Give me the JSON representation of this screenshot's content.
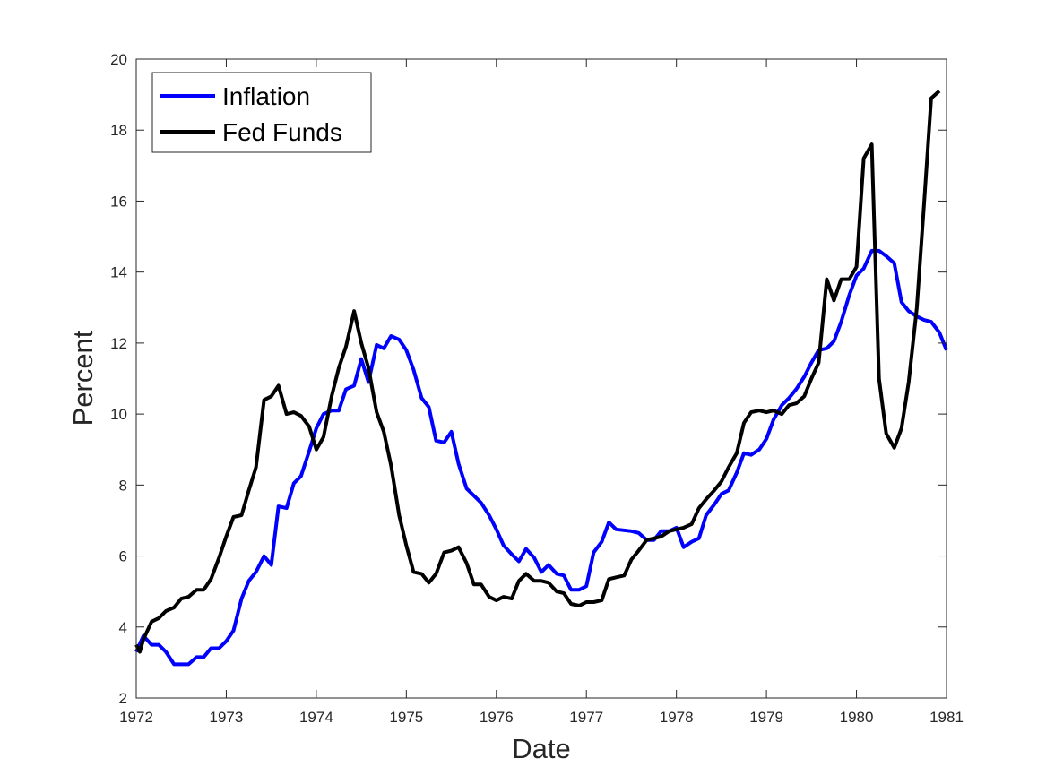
{
  "chart_data": {
    "type": "line",
    "xlabel": "Date",
    "ylabel": "Percent",
    "xlim": [
      1972,
      1981
    ],
    "ylim": [
      2,
      20
    ],
    "xticks": [
      1972,
      1973,
      1974,
      1975,
      1976,
      1977,
      1978,
      1979,
      1980,
      1981
    ],
    "yticks": [
      2,
      4,
      6,
      8,
      10,
      12,
      14,
      16,
      18,
      20
    ],
    "xtick_labels": [
      "1972",
      "1973",
      "1974",
      "1975",
      "1976",
      "1977",
      "1978",
      "1979",
      "1980",
      "1981"
    ],
    "ytick_labels": [
      "2",
      "4",
      "6",
      "8",
      "10",
      "12",
      "14",
      "16",
      "18",
      "20"
    ],
    "grid": false,
    "legend_position": "top-left",
    "series": [
      {
        "name": "Inflation",
        "color": "#0000ff",
        "points": [
          [
            1972.0,
            3.3
          ],
          [
            1972.08,
            3.75
          ],
          [
            1972.17,
            3.5
          ],
          [
            1972.25,
            3.5
          ],
          [
            1972.33,
            3.3
          ],
          [
            1972.42,
            2.95
          ],
          [
            1972.5,
            2.95
          ],
          [
            1972.58,
            2.95
          ],
          [
            1972.67,
            3.15
          ],
          [
            1972.75,
            3.15
          ],
          [
            1972.83,
            3.4
          ],
          [
            1972.92,
            3.4
          ],
          [
            1973.0,
            3.6
          ],
          [
            1973.08,
            3.9
          ],
          [
            1973.17,
            4.8
          ],
          [
            1973.25,
            5.3
          ],
          [
            1973.33,
            5.55
          ],
          [
            1973.42,
            6.0
          ],
          [
            1973.5,
            5.75
          ],
          [
            1973.58,
            7.4
          ],
          [
            1973.67,
            7.35
          ],
          [
            1973.75,
            8.05
          ],
          [
            1973.83,
            8.25
          ],
          [
            1973.92,
            8.95
          ],
          [
            1974.0,
            9.6
          ],
          [
            1974.08,
            10.0
          ],
          [
            1974.17,
            10.1
          ],
          [
            1974.25,
            10.1
          ],
          [
            1974.33,
            10.7
          ],
          [
            1974.42,
            10.8
          ],
          [
            1974.5,
            11.55
          ],
          [
            1974.58,
            10.9
          ],
          [
            1974.67,
            11.95
          ],
          [
            1974.75,
            11.85
          ],
          [
            1974.83,
            12.2
          ],
          [
            1974.92,
            12.1
          ],
          [
            1975.0,
            11.8
          ],
          [
            1975.08,
            11.25
          ],
          [
            1975.17,
            10.45
          ],
          [
            1975.25,
            10.2
          ],
          [
            1975.33,
            9.25
          ],
          [
            1975.42,
            9.2
          ],
          [
            1975.5,
            9.5
          ],
          [
            1975.58,
            8.6
          ],
          [
            1975.67,
            7.9
          ],
          [
            1975.75,
            7.7
          ],
          [
            1975.83,
            7.5
          ],
          [
            1975.92,
            7.15
          ],
          [
            1976.0,
            6.75
          ],
          [
            1976.08,
            6.3
          ],
          [
            1976.17,
            6.05
          ],
          [
            1976.25,
            5.85
          ],
          [
            1976.33,
            6.2
          ],
          [
            1976.42,
            5.95
          ],
          [
            1976.5,
            5.55
          ],
          [
            1976.58,
            5.75
          ],
          [
            1976.67,
            5.5
          ],
          [
            1976.75,
            5.45
          ],
          [
            1976.83,
            5.05
          ],
          [
            1976.92,
            5.05
          ],
          [
            1977.0,
            5.15
          ],
          [
            1977.08,
            6.1
          ],
          [
            1977.17,
            6.4
          ],
          [
            1977.25,
            6.95
          ],
          [
            1977.33,
            6.75
          ],
          [
            1977.5,
            6.7
          ],
          [
            1977.58,
            6.65
          ],
          [
            1977.67,
            6.45
          ],
          [
            1977.75,
            6.45
          ],
          [
            1977.83,
            6.7
          ],
          [
            1977.92,
            6.7
          ],
          [
            1978.0,
            6.8
          ],
          [
            1978.08,
            6.25
          ],
          [
            1978.17,
            6.4
          ],
          [
            1978.25,
            6.5
          ],
          [
            1978.33,
            7.15
          ],
          [
            1978.42,
            7.45
          ],
          [
            1978.5,
            7.75
          ],
          [
            1978.58,
            7.85
          ],
          [
            1978.67,
            8.35
          ],
          [
            1978.75,
            8.9
          ],
          [
            1978.83,
            8.85
          ],
          [
            1978.92,
            9.0
          ],
          [
            1979.0,
            9.3
          ],
          [
            1979.08,
            9.85
          ],
          [
            1979.17,
            10.25
          ],
          [
            1979.25,
            10.45
          ],
          [
            1979.33,
            10.7
          ],
          [
            1979.42,
            11.05
          ],
          [
            1979.5,
            11.45
          ],
          [
            1979.58,
            11.8
          ],
          [
            1979.67,
            11.85
          ],
          [
            1979.75,
            12.05
          ],
          [
            1979.83,
            12.6
          ],
          [
            1979.92,
            13.35
          ],
          [
            1980.0,
            13.9
          ],
          [
            1980.08,
            14.1
          ],
          [
            1980.17,
            14.6
          ],
          [
            1980.25,
            14.6
          ],
          [
            1980.33,
            14.45
          ],
          [
            1980.42,
            14.25
          ],
          [
            1980.5,
            13.15
          ],
          [
            1980.58,
            12.9
          ],
          [
            1980.67,
            12.75
          ],
          [
            1980.75,
            12.65
          ],
          [
            1980.83,
            12.6
          ],
          [
            1980.92,
            12.3
          ],
          [
            1981.0,
            11.8
          ]
        ]
      },
      {
        "name": "Fed Funds",
        "color": "#000000",
        "points": [
          [
            1972.0,
            3.5
          ],
          [
            1972.04,
            3.3
          ],
          [
            1972.08,
            3.65
          ],
          [
            1972.17,
            4.15
          ],
          [
            1972.25,
            4.25
          ],
          [
            1972.33,
            4.45
          ],
          [
            1972.42,
            4.55
          ],
          [
            1972.5,
            4.8
          ],
          [
            1972.58,
            4.85
          ],
          [
            1972.67,
            5.05
          ],
          [
            1972.75,
            5.05
          ],
          [
            1972.83,
            5.35
          ],
          [
            1972.92,
            5.95
          ],
          [
            1973.0,
            6.55
          ],
          [
            1973.08,
            7.1
          ],
          [
            1973.17,
            7.15
          ],
          [
            1973.25,
            7.85
          ],
          [
            1973.33,
            8.5
          ],
          [
            1973.42,
            10.4
          ],
          [
            1973.5,
            10.5
          ],
          [
            1973.58,
            10.8
          ],
          [
            1973.67,
            10.0
          ],
          [
            1973.75,
            10.05
          ],
          [
            1973.83,
            9.95
          ],
          [
            1973.92,
            9.65
          ],
          [
            1974.0,
            9.0
          ],
          [
            1974.08,
            9.35
          ],
          [
            1974.17,
            10.5
          ],
          [
            1974.25,
            11.3
          ],
          [
            1974.33,
            11.9
          ],
          [
            1974.42,
            12.9
          ],
          [
            1974.5,
            12.0
          ],
          [
            1974.58,
            11.3
          ],
          [
            1974.67,
            10.05
          ],
          [
            1974.75,
            9.5
          ],
          [
            1974.83,
            8.55
          ],
          [
            1974.92,
            7.15
          ],
          [
            1975.0,
            6.3
          ],
          [
            1975.08,
            5.55
          ],
          [
            1975.17,
            5.5
          ],
          [
            1975.25,
            5.25
          ],
          [
            1975.33,
            5.5
          ],
          [
            1975.42,
            6.1
          ],
          [
            1975.5,
            6.15
          ],
          [
            1975.58,
            6.25
          ],
          [
            1975.67,
            5.8
          ],
          [
            1975.75,
            5.2
          ],
          [
            1975.83,
            5.2
          ],
          [
            1975.92,
            4.85
          ],
          [
            1976.0,
            4.75
          ],
          [
            1976.08,
            4.85
          ],
          [
            1976.17,
            4.8
          ],
          [
            1976.25,
            5.3
          ],
          [
            1976.33,
            5.5
          ],
          [
            1976.42,
            5.3
          ],
          [
            1976.5,
            5.3
          ],
          [
            1976.58,
            5.25
          ],
          [
            1976.67,
            5.0
          ],
          [
            1976.75,
            4.95
          ],
          [
            1976.83,
            4.65
          ],
          [
            1976.92,
            4.6
          ],
          [
            1977.0,
            4.7
          ],
          [
            1977.08,
            4.7
          ],
          [
            1977.17,
            4.75
          ],
          [
            1977.25,
            5.35
          ],
          [
            1977.33,
            5.4
          ],
          [
            1977.42,
            5.45
          ],
          [
            1977.5,
            5.9
          ],
          [
            1977.58,
            6.15
          ],
          [
            1977.67,
            6.45
          ],
          [
            1977.75,
            6.5
          ],
          [
            1977.83,
            6.55
          ],
          [
            1977.92,
            6.7
          ],
          [
            1978.0,
            6.75
          ],
          [
            1978.08,
            6.8
          ],
          [
            1978.17,
            6.9
          ],
          [
            1978.25,
            7.35
          ],
          [
            1978.33,
            7.6
          ],
          [
            1978.42,
            7.85
          ],
          [
            1978.5,
            8.1
          ],
          [
            1978.58,
            8.5
          ],
          [
            1978.67,
            8.9
          ],
          [
            1978.75,
            9.75
          ],
          [
            1978.83,
            10.05
          ],
          [
            1978.92,
            10.1
          ],
          [
            1979.0,
            10.05
          ],
          [
            1979.08,
            10.1
          ],
          [
            1979.17,
            10.0
          ],
          [
            1979.25,
            10.25
          ],
          [
            1979.33,
            10.3
          ],
          [
            1979.42,
            10.5
          ],
          [
            1979.5,
            11.0
          ],
          [
            1979.58,
            11.45
          ],
          [
            1979.67,
            13.8
          ],
          [
            1979.75,
            13.2
          ],
          [
            1979.83,
            13.8
          ],
          [
            1979.92,
            13.8
          ],
          [
            1980.0,
            14.15
          ],
          [
            1980.08,
            17.2
          ],
          [
            1980.17,
            17.6
          ],
          [
            1980.25,
            11.0
          ],
          [
            1980.33,
            9.45
          ],
          [
            1980.42,
            9.05
          ],
          [
            1980.5,
            9.6
          ],
          [
            1980.58,
            10.9
          ],
          [
            1980.67,
            13.0
          ],
          [
            1980.75,
            15.9
          ],
          [
            1980.83,
            18.9
          ],
          [
            1980.92,
            19.1
          ]
        ]
      }
    ]
  }
}
